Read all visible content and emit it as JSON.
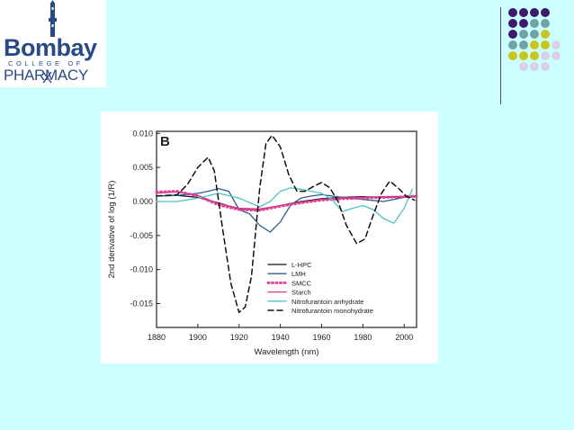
{
  "logo": {
    "line1": "Bombay",
    "line2": "COLLEGE OF",
    "line3": "PHARMACY"
  },
  "colors": {
    "background": "#ccffff",
    "dot_purple": "#3d1a6e",
    "dot_teal": "#6fa3a3",
    "dot_lime": "#c6c61a",
    "dot_lavender": "#d9d2e6"
  },
  "decor_dots": [
    [
      "dot_purple",
      "dot_purple",
      "dot_purple",
      "dot_purple"
    ],
    [
      "dot_purple",
      "dot_purple",
      "dot_teal",
      "dot_teal"
    ],
    [
      "dot_purple",
      "dot_teal",
      "dot_teal",
      "dot_lime"
    ],
    [
      "dot_teal",
      "dot_teal",
      "dot_lime",
      "dot_lime",
      "dot_lavender"
    ],
    [
      "dot_lime",
      "dot_lime",
      "dot_lime",
      "dot_lavender",
      "dot_lavender"
    ],
    [
      "",
      "dot_lavender",
      "dot_lavender",
      "dot_lavender"
    ]
  ],
  "chart_data": {
    "type": "line",
    "panel_label": "B",
    "title": "",
    "xlabel": "Wavelength (nm)",
    "ylabel": "2nd derivative of log (1/R)",
    "xlim": [
      1880,
      2006
    ],
    "ylim": [
      -0.0185,
      0.0103
    ],
    "xticks": [
      1880,
      1900,
      1920,
      1940,
      1960,
      1980,
      2000
    ],
    "yticks": [
      0.01,
      0.005,
      0.0,
      -0.005,
      -0.01,
      -0.015
    ],
    "ytick_labels": [
      "0.010",
      "0.005",
      "0.000",
      "-0.005",
      "-0.010",
      "-0.015"
    ],
    "grid": false,
    "legend_position": "lower-right",
    "series": [
      {
        "name": "L-HPC",
        "color": "#111111",
        "dash": "solid",
        "x": [
          1880,
          1890,
          1900,
          1910,
          1920,
          1930,
          1940,
          1950,
          1960,
          1970,
          1980,
          1990,
          2000,
          2006
        ],
        "y": [
          0.0008,
          0.0009,
          0.0006,
          -0.0002,
          -0.0011,
          -0.0012,
          -0.0006,
          0.0,
          0.0004,
          0.0006,
          0.0007,
          0.0006,
          0.0006,
          0.0007
        ]
      },
      {
        "name": "LMH",
        "color": "#2e5d8a",
        "dash": "solid",
        "x": [
          1880,
          1890,
          1900,
          1905,
          1910,
          1915,
          1920,
          1925,
          1930,
          1935,
          1940,
          1945,
          1950,
          1955,
          1960,
          1965,
          1970,
          1980,
          1990,
          2000,
          2006
        ],
        "y": [
          0.0008,
          0.0009,
          0.0012,
          0.0015,
          0.0019,
          0.0015,
          -0.0012,
          -0.0018,
          -0.0035,
          -0.0045,
          -0.003,
          -0.0005,
          0.0005,
          0.0008,
          0.001,
          0.0008,
          0.0006,
          0.0003,
          0.0,
          0.0006,
          0.0008
        ]
      },
      {
        "name": "SMCC",
        "color": "#e0459a",
        "dash": "dotted",
        "x": [
          1880,
          1890,
          1900,
          1910,
          1920,
          1930,
          1940,
          1950,
          1960,
          1970,
          1980,
          1990,
          2000,
          2006
        ],
        "y": [
          0.0014,
          0.0015,
          0.0008,
          -0.0005,
          -0.0012,
          -0.0013,
          -0.0007,
          -0.0002,
          0.0002,
          0.0004,
          0.0005,
          0.0006,
          0.0007,
          0.0008
        ]
      },
      {
        "name": "Starch",
        "color": "#d63a8e",
        "dash": "solid",
        "x": [
          1880,
          1890,
          1900,
          1910,
          1920,
          1930,
          1940,
          1950,
          1960,
          1970,
          1980,
          1990,
          2000,
          2006
        ],
        "y": [
          0.0012,
          0.0014,
          0.0009,
          -0.0003,
          -0.001,
          -0.0011,
          -0.0006,
          -0.0001,
          0.0003,
          0.0005,
          0.0006,
          0.0007,
          0.0007,
          0.0008
        ]
      },
      {
        "name": "Nitrofurantoin anhydrate",
        "color": "#4fc3c3",
        "dash": "solid",
        "x": [
          1880,
          1890,
          1900,
          1910,
          1920,
          1930,
          1935,
          1940,
          1945,
          1950,
          1955,
          1960,
          1965,
          1970,
          1975,
          1980,
          1985,
          1990,
          1995,
          2000,
          2004
        ],
        "y": [
          0.0,
          0.0,
          0.0005,
          0.0012,
          0.0005,
          -0.0008,
          0.0,
          0.0015,
          0.002,
          0.0018,
          0.0015,
          0.0012,
          0.0003,
          -0.0015,
          -0.001,
          -0.0006,
          -0.0012,
          -0.0025,
          -0.0032,
          -0.001,
          0.0018
        ]
      },
      {
        "name": "Nitrofurantoin monohydrate",
        "color": "#111111",
        "dash": "dashed",
        "x": [
          1880,
          1890,
          1895,
          1900,
          1905,
          1908,
          1912,
          1916,
          1920,
          1923,
          1926,
          1930,
          1933,
          1936,
          1940,
          1944,
          1948,
          1952,
          1956,
          1960,
          1964,
          1968,
          1972,
          1977,
          1981,
          1985,
          1989,
          1993,
          1997,
          2001,
          2005
        ],
        "y": [
          0.0008,
          0.001,
          0.0025,
          0.005,
          0.0065,
          0.0045,
          -0.004,
          -0.012,
          -0.0163,
          -0.0155,
          -0.011,
          0.002,
          0.0085,
          0.0097,
          0.008,
          0.004,
          0.0015,
          0.0015,
          0.0022,
          0.0028,
          0.002,
          0.0,
          -0.0035,
          -0.0062,
          -0.0055,
          -0.002,
          0.0012,
          0.003,
          0.002,
          0.0008,
          0.0002
        ]
      }
    ]
  }
}
